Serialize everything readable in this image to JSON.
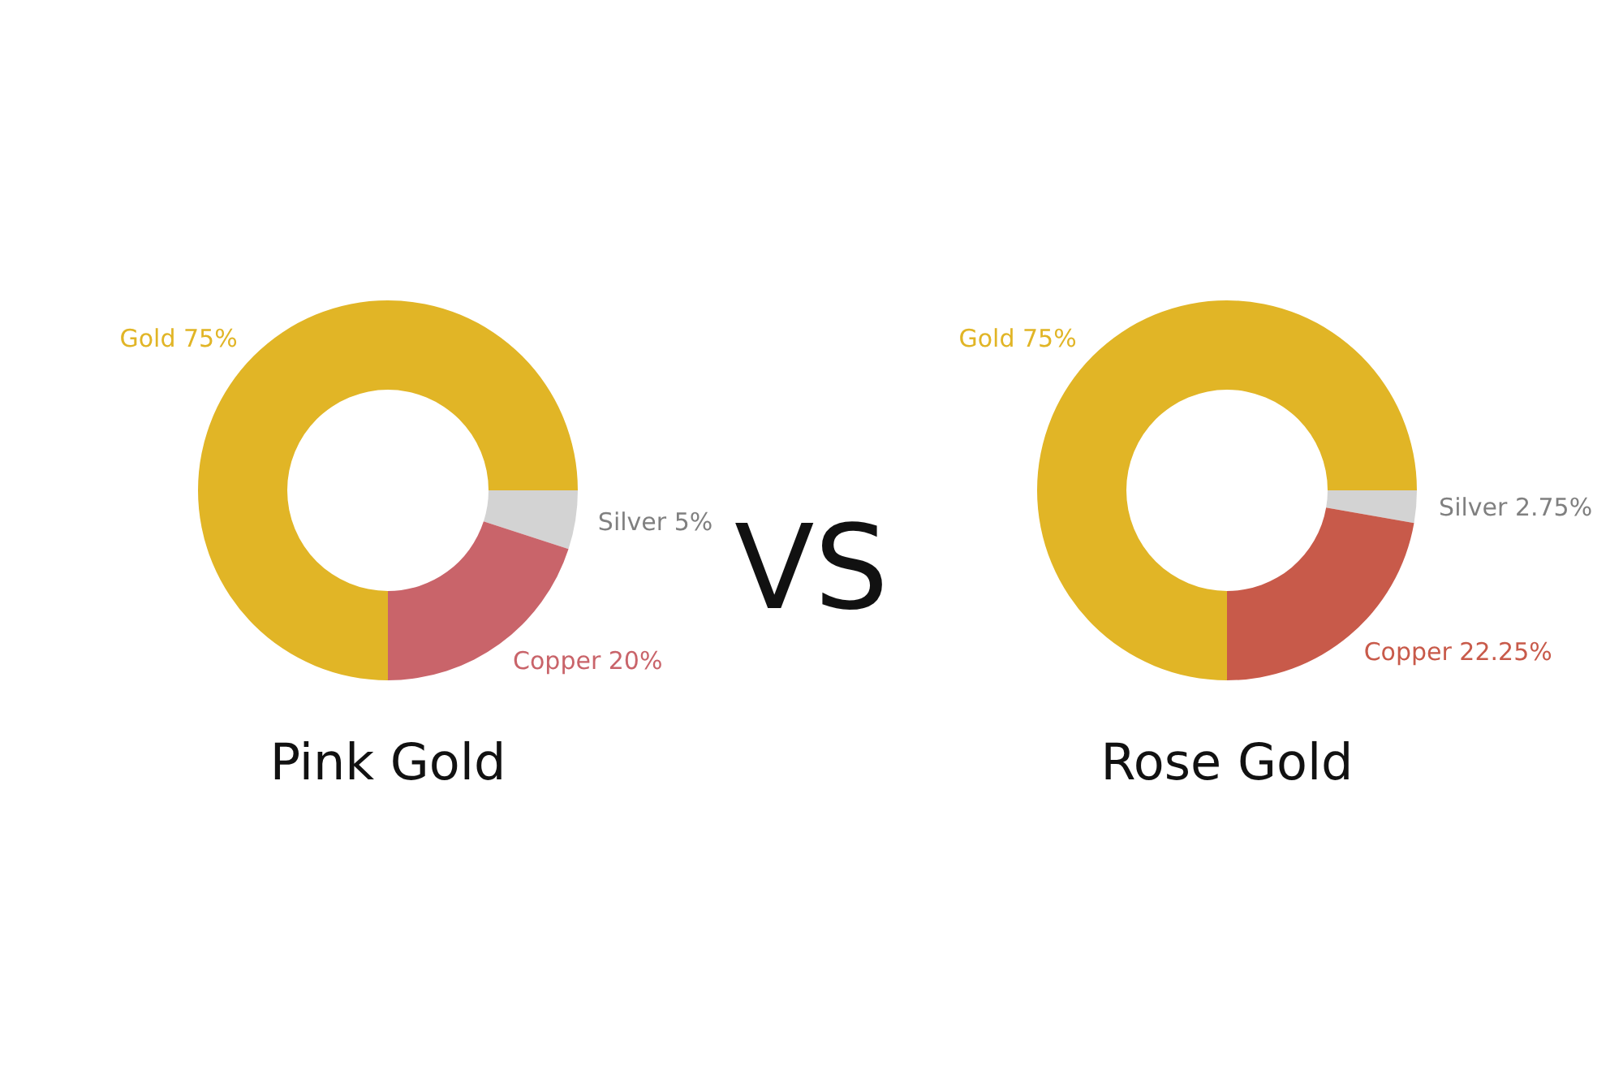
{
  "chart_data": [
    {
      "type": "donut",
      "title": "Pink Gold",
      "categories": [
        "Gold",
        "Silver",
        "Copper"
      ],
      "values": [
        75,
        5,
        20
      ],
      "value_labels": [
        "75%",
        "5%",
        "20%"
      ],
      "colors": [
        "#e1b526",
        "#d3d3d3",
        "#c9646a"
      ]
    },
    {
      "type": "other",
      "title": "VS"
    },
    {
      "type": "donut",
      "title": "Rose Gold",
      "categories": [
        "Gold",
        "Silver",
        "Copper"
      ],
      "values": [
        75,
        2.75,
        22.25
      ],
      "value_labels": [
        "75%",
        "2.75%",
        "22.25%"
      ],
      "colors": [
        "#e1b526",
        "#d3d3d3",
        "#c85a4a"
      ]
    }
  ]
}
